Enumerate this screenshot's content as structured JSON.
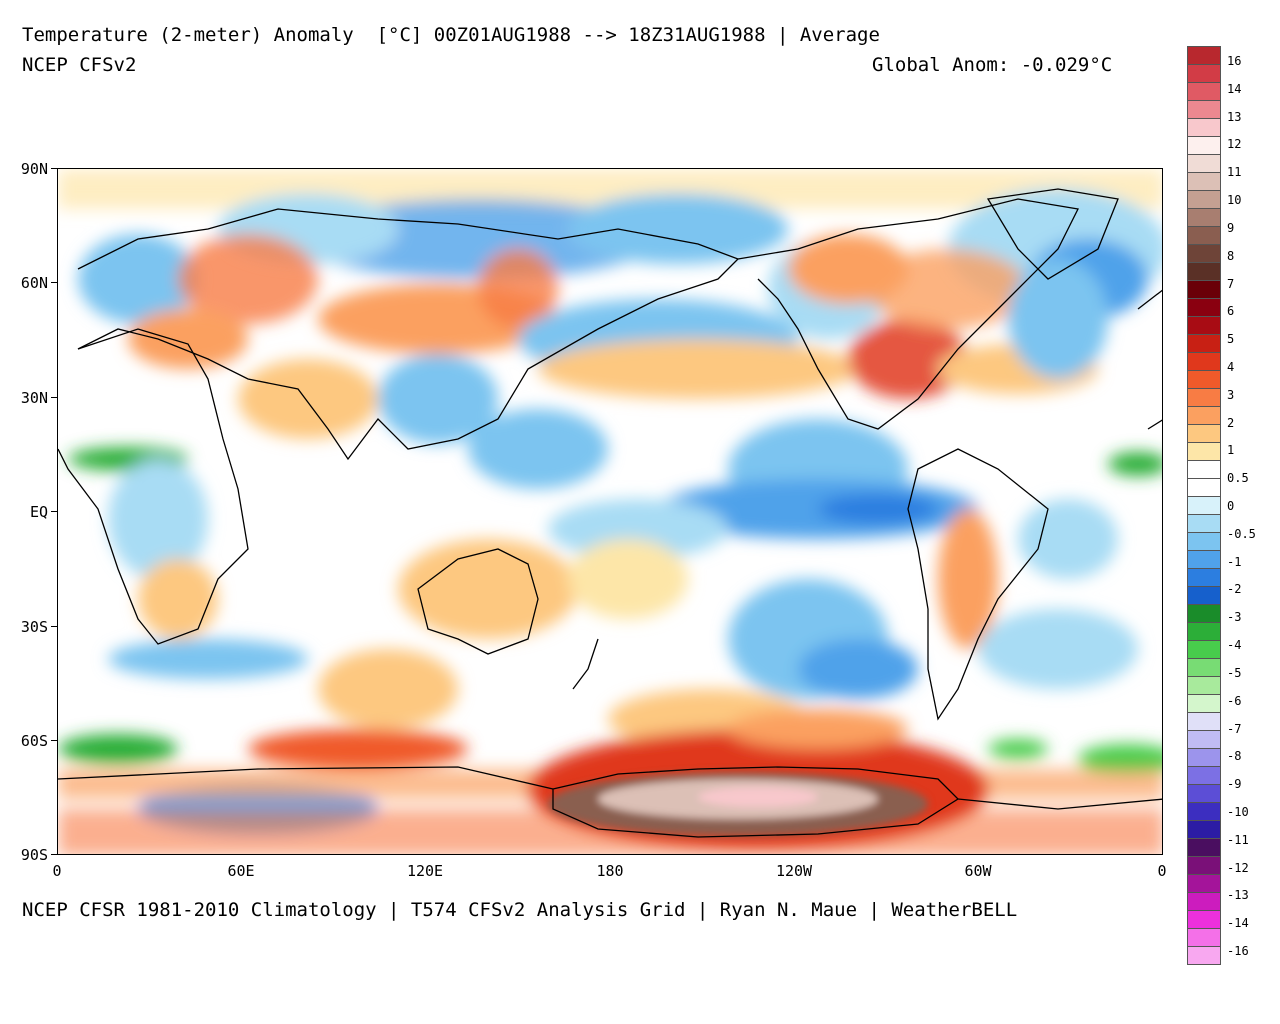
{
  "header": {
    "title": "Temperature (2-meter) Anomaly  [°C] 00Z01AUG1988 --> 18Z31AUG1988 | Average",
    "model": "NCEP CFSv2",
    "global_anom": "Global Anom: -0.029°C"
  },
  "footer": {
    "credit": "NCEP CFSR 1981-2010 Climatology | T574 CFSv2 Analysis Grid | Ryan N. Maue | WeatherBELL"
  },
  "axes": {
    "lat_labels": [
      "90N",
      "60N",
      "30N",
      "EQ",
      "30S",
      "60S",
      "90S"
    ],
    "lon_labels": [
      "0",
      "60E",
      "120E",
      "180",
      "120W",
      "60W",
      "0"
    ]
  },
  "colorbar": {
    "labels": [
      "16",
      "14",
      "13",
      "12",
      "11",
      "10",
      "9",
      "8",
      "7",
      "6",
      "5",
      "4",
      "3",
      "2",
      "1",
      "0.5",
      "0",
      "-0.5",
      "-1",
      "-2",
      "-3",
      "-4",
      "-5",
      "-6",
      "-7",
      "-8",
      "-9",
      "-10",
      "-11",
      "-12",
      "-13",
      "-14",
      "-16"
    ],
    "colors": [
      "#b8282e",
      "#d23c46",
      "#e05a64",
      "#ec8890",
      "#f8c8cc",
      "#fdf0ee",
      "#f0dcd6",
      "#dcc0b6",
      "#c4a092",
      "#a87e70",
      "#8a5e50",
      "#6e4438",
      "#5a3026",
      "#6a0008",
      "#8a0010",
      "#a80c14",
      "#c82014",
      "#e0381c",
      "#f05a2a",
      "#f87c44",
      "#fba060",
      "#fdc880",
      "#fde6a8",
      "#ffffff",
      "#ffffff",
      "#d8f2fa",
      "#a8dcf4",
      "#7cc4f0",
      "#50a2ea",
      "#2c7ee0",
      "#1660cc",
      "#1a8c2a",
      "#2cae38",
      "#48cc4c",
      "#78dc74",
      "#a8ea9c",
      "#d4f6cc",
      "#e0e0f8",
      "#c0bcf4",
      "#9c94ec",
      "#7c70e4",
      "#5c4ed6",
      "#3c2ec0",
      "#2c1ca4",
      "#4a0e60",
      "#7a1078",
      "#a4149a",
      "#cc1cbe",
      "#ec30dc",
      "#f470e8",
      "#f8a8f0"
    ]
  }
}
